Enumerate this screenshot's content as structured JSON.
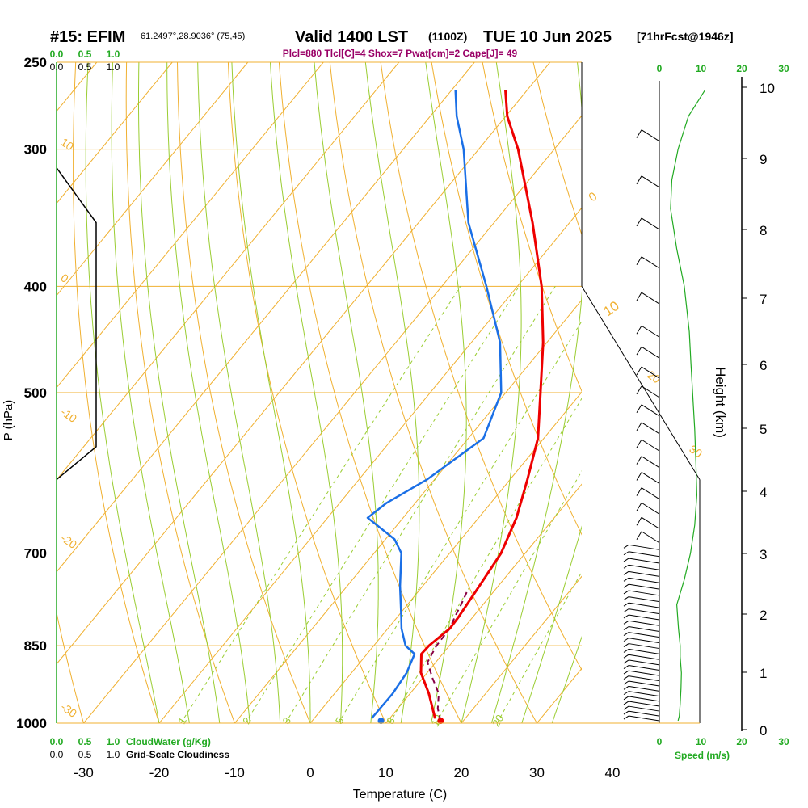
{
  "header": {
    "prefix": "#15: EFIM",
    "coords": "61.2497°,28.9036° (75,45)",
    "valid": "Valid 1400 LST",
    "z": "(1100Z)",
    "date": "TUE 10 Jun 2025",
    "fcst": "[71hrFcst@1946z]"
  },
  "indices": "Plcl=880 Tlcl[C]=4 Shox=7 Pwat[cm]=2 Cape[J]= 49",
  "colors": {
    "temp": "#ee0000",
    "dewpoint": "#1a6fe6",
    "parcel": "#880044",
    "isobar": "#f0b030",
    "dry_adiabat": "#f0b030",
    "moist_adiabat": "#9acd32",
    "mixing_ratio": "#9acd32",
    "green": "#22aa22",
    "profile": "#000000"
  },
  "chart_data": {
    "type": "line",
    "chart_kind": "skew-T log-P sounding",
    "ylabel": "P (hPa)",
    "xlabel": "Temperature (C)",
    "right_label": "Height (km)",
    "pressure_ticks": [
      1000,
      850,
      700,
      500,
      400,
      300,
      250
    ],
    "temp_ticks": [
      -30,
      -20,
      -10,
      0,
      10,
      20,
      30,
      40
    ],
    "height_ticks": [
      0,
      1,
      2,
      3,
      4,
      5,
      6,
      7,
      8,
      9,
      10
    ],
    "ylim": [
      1000,
      250
    ],
    "temperature": {
      "name": "Temperature",
      "p": [
        990,
        940,
        900,
        865,
        850,
        820,
        800,
        750,
        700,
        650,
        600,
        550,
        500,
        450,
        400,
        350,
        300,
        280,
        265
      ],
      "t": [
        16.0,
        12.5,
        9.2,
        7.2,
        7.3,
        8.2,
        8.1,
        7.5,
        6.8,
        5.0,
        2.3,
        -0.8,
        -5.4,
        -10.5,
        -16.8,
        -24.9,
        -34.8,
        -39.8,
        -42.9
      ]
    },
    "dewpoint": {
      "name": "Dewpoint",
      "p": [
        990,
        940,
        900,
        865,
        850,
        820,
        800,
        750,
        700,
        680,
        650,
        630,
        600,
        550,
        500,
        450,
        400,
        350,
        300,
        280,
        265
      ],
      "td": [
        7.6,
        7.7,
        7.3,
        6.3,
        4.2,
        1.8,
        0.5,
        -3.0,
        -6.4,
        -8.8,
        -14.7,
        -13.8,
        -11.0,
        -8.0,
        -10.6,
        -16.2,
        -24.1,
        -33.4,
        -42.0,
        -46.5,
        -49.5
      ]
    },
    "parcel": {
      "name": "Parcel",
      "p": [
        995,
        970,
        940,
        910,
        880,
        850,
        820,
        800,
        780,
        760
      ],
      "t": [
        17.0,
        15.3,
        13.8,
        11.3,
        8.9,
        8.3,
        8.2,
        7.6,
        7.1,
        6.5
      ]
    },
    "surface_temperature": 17.0,
    "surface_dewpoint": 9.1,
    "isotherm_labels": [
      -30,
      -20,
      -10,
      0,
      10,
      20,
      30
    ],
    "mixing_ratio_labels": [
      "1",
      "2",
      "3",
      "5",
      "8",
      "12",
      "20"
    ],
    "mixing_ratio_values": [
      1,
      2,
      3,
      5,
      8,
      12,
      20
    ],
    "wind_speed_axis": {
      "label": "Speed (m/s)",
      "ticks": [
        0,
        10,
        20,
        30
      ],
      "tick_labels": [
        "0",
        "10",
        "20",
        "30"
      ],
      "profile_p": [
        995,
        985,
        960,
        930,
        900,
        870,
        850,
        820,
        780,
        740,
        700,
        660,
        620,
        580,
        540,
        500,
        470,
        440,
        400,
        370,
        340,
        320,
        300,
        280,
        265
      ],
      "speed": [
        4.5,
        4.8,
        5.0,
        5.2,
        5.3,
        5.0,
        5.0,
        4.6,
        4.2,
        6.0,
        7.5,
        8.5,
        9.0,
        8.8,
        8.5,
        8.0,
        7.6,
        7.2,
        6.0,
        4.2,
        2.7,
        3.0,
        4.5,
        7.0,
        11.0
      ]
    },
    "cloud_water_axis": {
      "label": "CloudWater (g/Kg)",
      "ticks": [
        0,
        0.5,
        1.0
      ],
      "tick_labels": [
        "0.0",
        "0.5",
        "1.0"
      ]
    },
    "cloudiness_axis": {
      "label": "Grid-Scale Cloudiness",
      "ticks": [
        0,
        0.5,
        1.0
      ],
      "tick_labels": [
        "0.0",
        "0.5",
        "1.0"
      ],
      "profile_p": [
        312,
        350,
        560,
        600
      ],
      "cloudiness": [
        0.0,
        0.7,
        0.7,
        0.0
      ]
    }
  }
}
